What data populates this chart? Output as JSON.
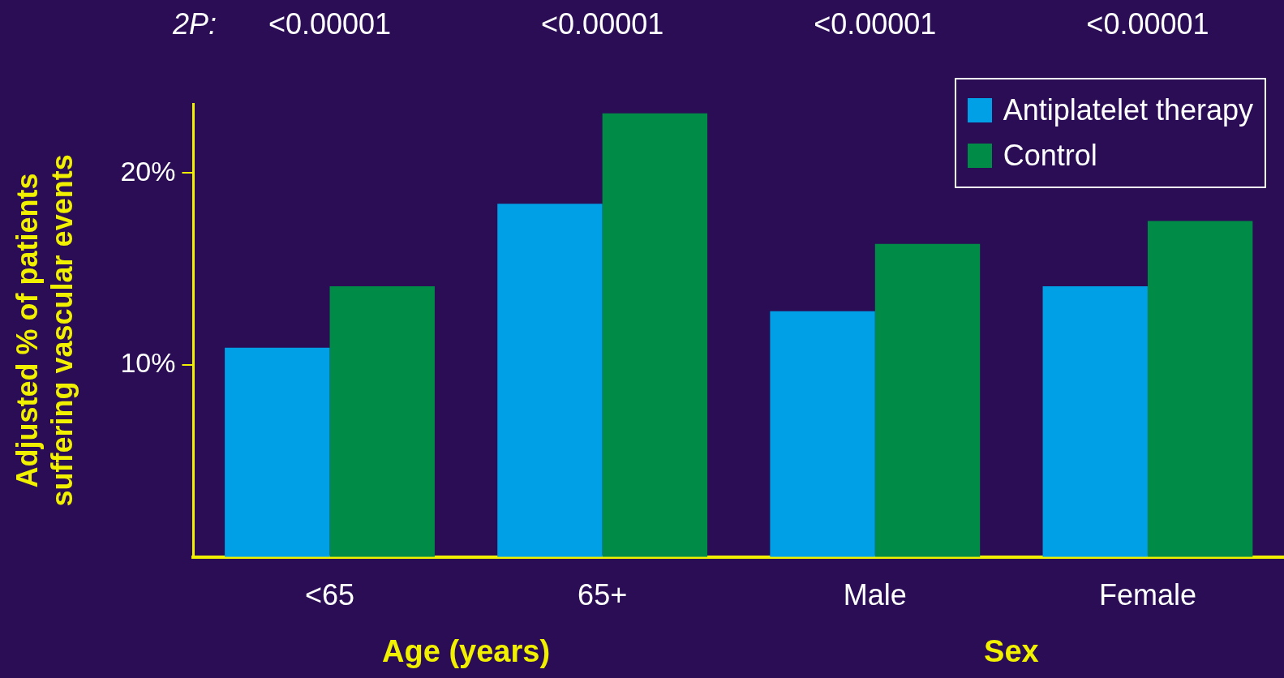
{
  "chart_data": {
    "type": "bar",
    "ylabel": "Adjusted % of patients suffering vascular events",
    "categories": [
      "<65",
      "65+",
      "Male",
      "Female"
    ],
    "series": [
      {
        "name": "Antiplatelet therapy",
        "color": "#00a0e6",
        "values": [
          10.9,
          18.4,
          12.8,
          14.1
        ]
      },
      {
        "name": "Control",
        "color": "#008c46",
        "values": [
          14.1,
          23.1,
          16.3,
          17.5
        ]
      }
    ],
    "ylim": [
      0,
      23.6
    ],
    "yticks": [
      {
        "value": 10,
        "label": "10%"
      },
      {
        "value": 20,
        "label": "20%"
      }
    ],
    "grid": false,
    "legend": "top right",
    "annotations": [
      "2P:",
      "Age (years)",
      "Sex",
      "<0.00001",
      "<0.00001",
      "<0.00001",
      "<0.00001"
    ]
  }
}
